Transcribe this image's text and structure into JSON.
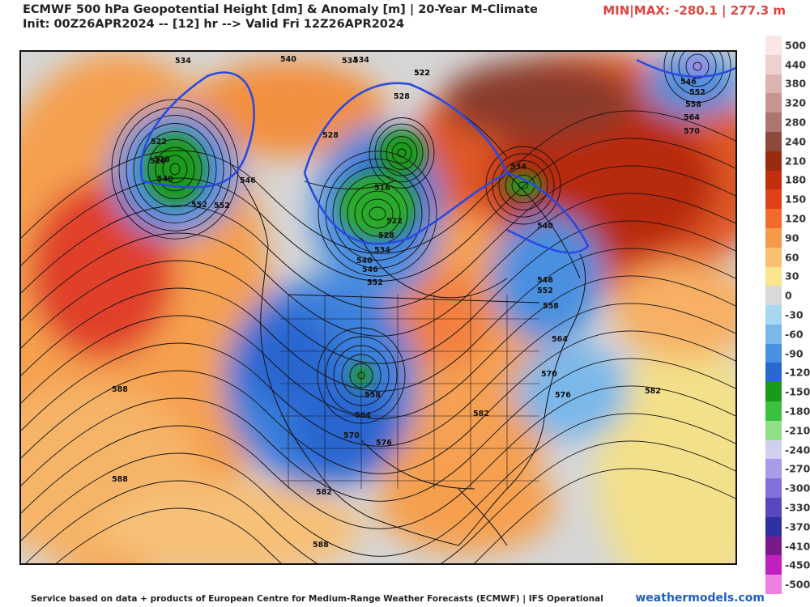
{
  "header": {
    "title": "ECMWF 500 hPa Geopotential Height [dm] & Anomaly [m] | 20-Year M-Climate",
    "init_line": "Init: 00Z26APR2024 -- [12] hr --> Valid Fri 12Z26APR2024",
    "minmax": "MIN|MAX: -280.1 | 277.3 m"
  },
  "colorbar": {
    "labels": [
      "500",
      "440",
      "380",
      "320",
      "280",
      "240",
      "210",
      "180",
      "150",
      "120",
      "90",
      "60",
      "30",
      "0",
      "-30",
      "-60",
      "-90",
      "-120",
      "-150",
      "-180",
      "-210",
      "-240",
      "-270",
      "-300",
      "-330",
      "-370",
      "-410",
      "-450",
      "-500"
    ],
    "colors": [
      "#fbe6e6",
      "#efd0cf",
      "#dbb3b0",
      "#c79691",
      "#ad7570",
      "#8c4a3a",
      "#9a2a10",
      "#c0300e",
      "#e0401a",
      "#f26a2c",
      "#f59a48",
      "#f8c070",
      "#fbe68e",
      "#d9d9d9",
      "#a8d8f0",
      "#7ab8ea",
      "#4a90e0",
      "#2a68d0",
      "#1a9a1a",
      "#3cc040",
      "#90e088",
      "#cfd0f0",
      "#a89ce8",
      "#8070d8",
      "#5848c0",
      "#3030a0",
      "#7a1a8a",
      "#c020c0",
      "#f080e0"
    ]
  },
  "contour_labels": [
    "534",
    "540",
    "534",
    "522",
    "528",
    "552",
    "534",
    "522",
    "528",
    "546",
    "552",
    "558",
    "564",
    "570",
    "522",
    "528",
    "540",
    "546",
    "552",
    "528",
    "516",
    "522",
    "528",
    "534",
    "540",
    "546",
    "552",
    "534",
    "540",
    "546",
    "552",
    "558",
    "564",
    "570",
    "576",
    "582",
    "588",
    "588",
    "588",
    "558",
    "564",
    "570",
    "576",
    "582",
    "582"
  ],
  "footer": {
    "credit": "Service based on data + products of European Centre for Medium-Range Weather Forecasts (ECMWF) | IFS Operational",
    "brand": "weathermodels.com"
  },
  "colors": {
    "minmax": "#e0443c",
    "brand": "#1f5fbf"
  }
}
